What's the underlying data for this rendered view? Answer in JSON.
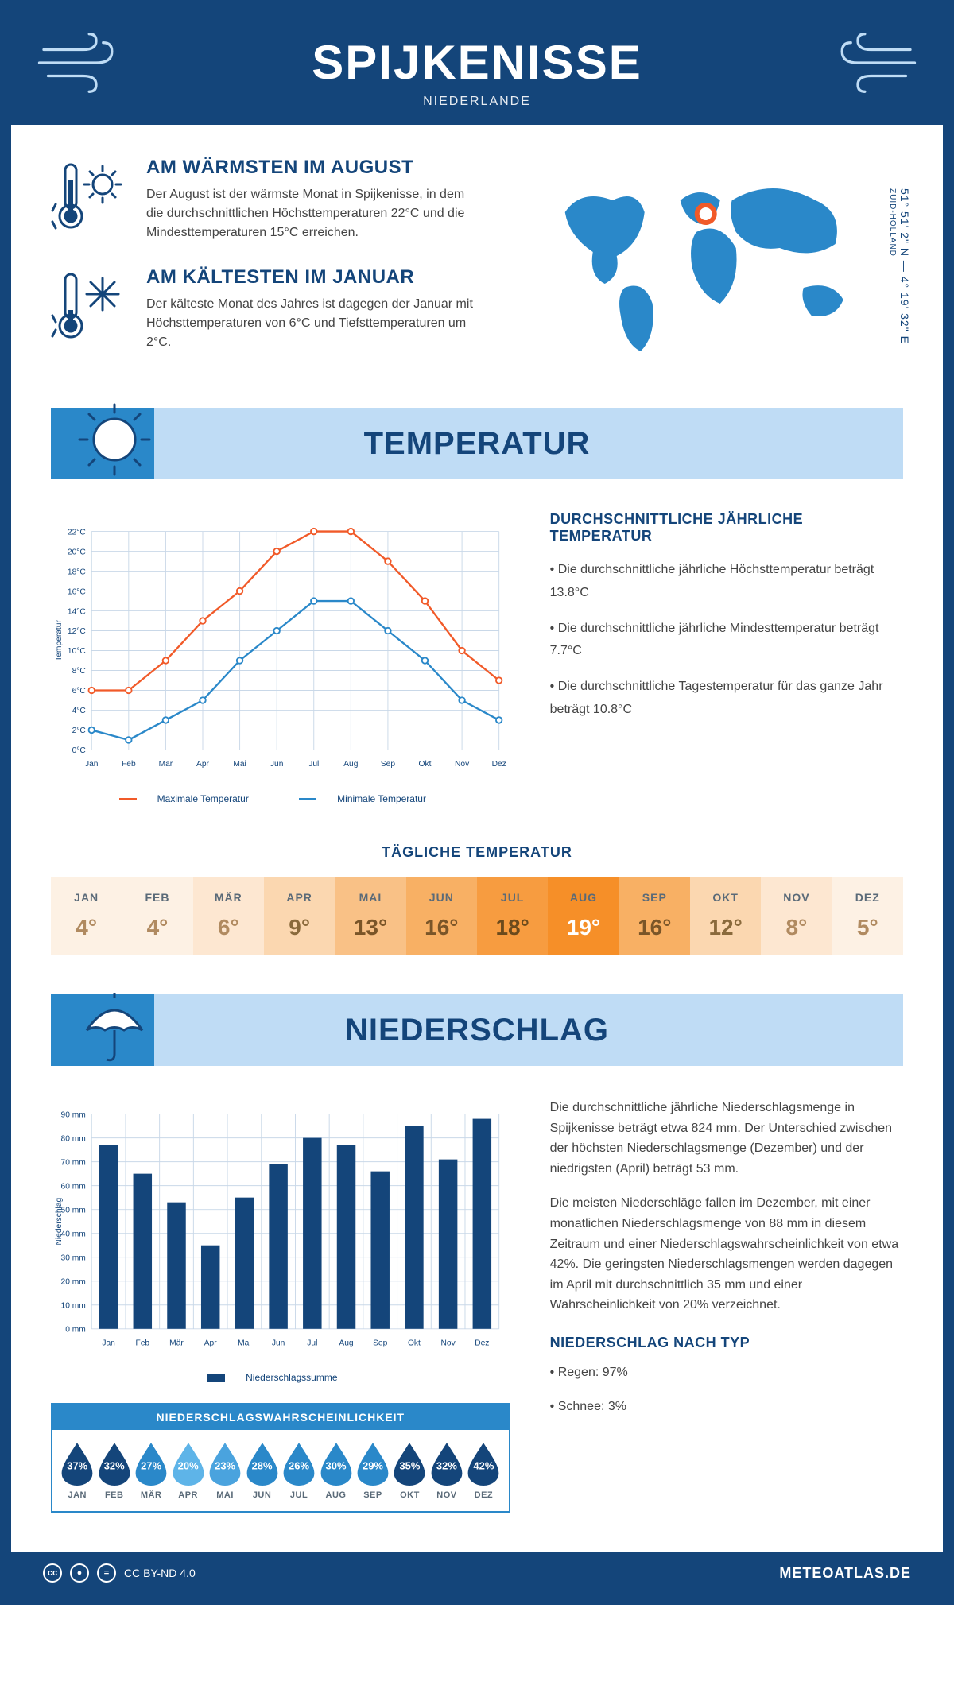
{
  "header": {
    "title": "SPIJKENISSE",
    "subtitle": "NIEDERLANDE"
  },
  "coords": {
    "line1": "51° 51' 2\" N — 4° 19' 32\" E",
    "region": "ZUID-HOLLAND"
  },
  "warm": {
    "title": "AM WÄRMSTEN IM AUGUST",
    "text": "Der August ist der wärmste Monat in Spijkenisse, in dem die durchschnittlichen Höchsttemperaturen 22°C und die Mindesttemperaturen 15°C erreichen."
  },
  "cold": {
    "title": "AM KÄLTESTEN IM JANUAR",
    "text": "Der kälteste Monat des Jahres ist dagegen der Januar mit Höchsttemperaturen von 6°C und Tiefsttemperaturen um 2°C."
  },
  "section_temp": "TEMPERATUR",
  "section_precip": "NIEDERSCHLAG",
  "months": [
    "Jan",
    "Feb",
    "Mär",
    "Apr",
    "Mai",
    "Jun",
    "Jul",
    "Aug",
    "Sep",
    "Okt",
    "Nov",
    "Dez"
  ],
  "months_uc": [
    "JAN",
    "FEB",
    "MÄR",
    "APR",
    "MAI",
    "JUN",
    "JUL",
    "AUG",
    "SEP",
    "OKT",
    "NOV",
    "DEZ"
  ],
  "temp_chart": {
    "type": "line",
    "ylim": [
      0,
      22
    ],
    "ytick_step": 2,
    "ysuffix": "°C",
    "ylabel": "Temperatur",
    "series": {
      "max": {
        "label": "Maximale Temperatur",
        "color": "#f15a29",
        "values": [
          6,
          6,
          9,
          13,
          16,
          20,
          22,
          22,
          19,
          15,
          10,
          7
        ]
      },
      "min": {
        "label": "Minimale Temperatur",
        "color": "#2a88c9",
        "values": [
          2,
          1,
          3,
          5,
          9,
          12,
          15,
          15,
          12,
          9,
          5,
          3
        ]
      }
    },
    "grid_color": "#c9d8e8",
    "bg": "#ffffff"
  },
  "temp_text": {
    "heading": "DURCHSCHNITTLICHE JÄHRLICHE TEMPERATUR",
    "b1": "• Die durchschnittliche jährliche Höchsttemperatur beträgt 13.8°C",
    "b2": "• Die durchschnittliche jährliche Mindesttemperatur beträgt 7.7°C",
    "b3": "• Die durchschnittliche Tagestemperatur für das ganze Jahr beträgt 10.8°C"
  },
  "daily": {
    "heading": "TÄGLICHE TEMPERATUR",
    "values": [
      "4°",
      "4°",
      "6°",
      "9°",
      "13°",
      "16°",
      "18°",
      "19°",
      "16°",
      "12°",
      "8°",
      "5°"
    ],
    "bg_colors": [
      "#fdf1e4",
      "#fdf1e4",
      "#fde7d1",
      "#fbd7b0",
      "#f9c186",
      "#f8b064",
      "#f79c40",
      "#f68f28",
      "#f8b064",
      "#fbd7b0",
      "#fde7d1",
      "#fdf1e4"
    ],
    "text_colors": [
      "#b08a60",
      "#b08a60",
      "#b08a60",
      "#8a6a3c",
      "#7a5528",
      "#7a5528",
      "#6b4a1c",
      "#ffffff",
      "#7a5528",
      "#8a6a3c",
      "#b08a60",
      "#b08a60"
    ]
  },
  "precip_chart": {
    "type": "bar",
    "ylim": [
      0,
      90
    ],
    "ytick_step": 10,
    "ysuffix": " mm",
    "ylabel": "Niederschlag",
    "bar_color": "#14457a",
    "grid_color": "#c9d8e8",
    "values": [
      77,
      65,
      53,
      35,
      55,
      69,
      80,
      77,
      66,
      85,
      71,
      88
    ],
    "legend": "Niederschlagssumme"
  },
  "precip_text": {
    "p1": "Die durchschnittliche jährliche Niederschlagsmenge in Spijkenisse beträgt etwa 824 mm. Der Unterschied zwischen der höchsten Niederschlagsmenge (Dezember) und der niedrigsten (April) beträgt 53 mm.",
    "p2": "Die meisten Niederschläge fallen im Dezember, mit einer monatlichen Niederschlagsmenge von 88 mm in diesem Zeitraum und einer Niederschlagswahrscheinlichkeit von etwa 42%. Die geringsten Niederschlagsmengen werden dagegen im April mit durchschnittlich 35 mm und einer Wahrscheinlichkeit von 20% verzeichnet.",
    "type_heading": "NIEDERSCHLAG NACH TYP",
    "t1": "• Regen: 97%",
    "t2": "• Schnee: 3%"
  },
  "prob": {
    "title": "NIEDERSCHLAGSWAHRSCHEINLICHKEIT",
    "values": [
      "37%",
      "32%",
      "27%",
      "20%",
      "23%",
      "28%",
      "26%",
      "30%",
      "29%",
      "35%",
      "32%",
      "42%"
    ],
    "colors": [
      "#14457a",
      "#14457a",
      "#2a88c9",
      "#5eb4e8",
      "#4aa3de",
      "#2a88c9",
      "#2a88c9",
      "#2a88c9",
      "#2a88c9",
      "#14457a",
      "#14457a",
      "#14457a"
    ]
  },
  "footer": {
    "license": "CC BY-ND 4.0",
    "site": "METEOATLAS.DE"
  },
  "colors": {
    "primary": "#14457a",
    "accent": "#2a88c9",
    "light": "#bfdcf5"
  }
}
